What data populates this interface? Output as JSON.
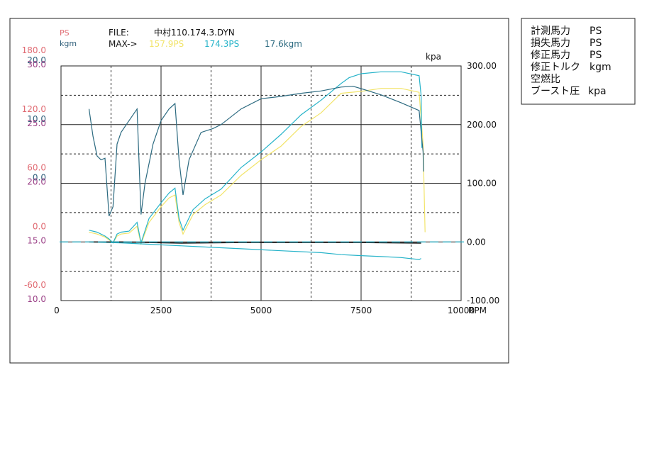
{
  "colors": {
    "ps": "#e06a72",
    "kgm": "#2f5f7a",
    "kpa": "#9a3f86",
    "measured": "#f2e46a",
    "corrected": "#26b3c9",
    "torque": "#2c6a80",
    "loss": "#26b3c9",
    "boost": "#222222",
    "text": "#111111"
  },
  "header": {
    "unit_ps": "PS",
    "unit_kgm": "kgm",
    "file_label": "FILE:",
    "file_name": "中村110.174.3.DYN",
    "max_label": "MAX->",
    "max_measured": "157.9PS",
    "max_corrected": "174.3PS",
    "max_torque": "17.6kgm"
  },
  "legend": {
    "items": [
      {
        "name": "計測馬力",
        "unit": "PS"
      },
      {
        "name": "損失馬力",
        "unit": "PS"
      },
      {
        "name": "修正馬力",
        "unit": "PS"
      },
      {
        "name": "修正トルク",
        "unit": "kgm"
      },
      {
        "name": "空燃比",
        "unit": ""
      },
      {
        "name": "ブースト圧",
        "unit": "kpa"
      }
    ]
  },
  "left_axes": {
    "rows": [
      {
        "ps": "180.0",
        "kgm": "20.0",
        "kpa": "30.0"
      },
      {
        "ps": "120.0",
        "kgm": "10.0",
        "kpa": "25.0"
      },
      {
        "ps": "60.0",
        "kgm": "0.0",
        "kpa": "20.0"
      },
      {
        "ps": "0.0",
        "kgm": "",
        "kpa": "15.0"
      },
      {
        "ps": "-60.0",
        "kgm": "",
        "kpa": "10.0"
      }
    ]
  },
  "chart_data": {
    "type": "line",
    "x_label": "RPM",
    "x_ticks": [
      "0",
      "2500",
      "5000",
      "7500",
      "10000"
    ],
    "xlim": [
      0,
      10000
    ],
    "right_axis_label": "kpa",
    "right_ticks": [
      "300.00",
      "200.00",
      "100.00",
      "0.00",
      "-100.00"
    ],
    "right_ylim": [
      -100,
      300
    ],
    "ps_ylim": [
      -60,
      180
    ],
    "kgm_ylim": [
      -10,
      20
    ],
    "grid": true,
    "series": [
      {
        "name": "計測馬力",
        "axis": "ps",
        "points": [
          [
            700,
            10
          ],
          [
            900,
            8
          ],
          [
            1100,
            5
          ],
          [
            1200,
            2
          ],
          [
            1300,
            -1
          ],
          [
            1400,
            6
          ],
          [
            1500,
            8
          ],
          [
            1700,
            9
          ],
          [
            1900,
            16
          ],
          [
            2000,
            -2
          ],
          [
            2200,
            20
          ],
          [
            2500,
            36
          ],
          [
            2700,
            45
          ],
          [
            2850,
            48
          ],
          [
            2950,
            20
          ],
          [
            3050,
            8
          ],
          [
            3300,
            28
          ],
          [
            3600,
            38
          ],
          [
            4000,
            48
          ],
          [
            4500,
            68
          ],
          [
            5000,
            84
          ],
          [
            5500,
            98
          ],
          [
            6000,
            118
          ],
          [
            6500,
            132
          ],
          [
            7000,
            152
          ],
          [
            7500,
            154
          ],
          [
            8000,
            157
          ],
          [
            8500,
            157
          ],
          [
            8950,
            153
          ],
          [
            9050,
            100
          ],
          [
            9100,
            10
          ]
        ]
      },
      {
        "name": "修正馬力",
        "axis": "ps",
        "points": [
          [
            700,
            12
          ],
          [
            900,
            10
          ],
          [
            1100,
            6
          ],
          [
            1200,
            3
          ],
          [
            1300,
            -1
          ],
          [
            1400,
            8
          ],
          [
            1500,
            10
          ],
          [
            1700,
            11
          ],
          [
            1900,
            20
          ],
          [
            2000,
            -1
          ],
          [
            2200,
            24
          ],
          [
            2500,
            40
          ],
          [
            2700,
            50
          ],
          [
            2850,
            55
          ],
          [
            2950,
            24
          ],
          [
            3050,
            12
          ],
          [
            3300,
            33
          ],
          [
            3600,
            44
          ],
          [
            4000,
            54
          ],
          [
            4500,
            76
          ],
          [
            5000,
            92
          ],
          [
            5500,
            110
          ],
          [
            6000,
            130
          ],
          [
            6500,
            145
          ],
          [
            7000,
            162
          ],
          [
            7200,
            168
          ],
          [
            7500,
            172
          ],
          [
            8000,
            174
          ],
          [
            8500,
            174
          ],
          [
            8950,
            170
          ],
          [
            9000,
            150
          ],
          [
            9020,
            96
          ]
        ]
      },
      {
        "name": "修正トルク",
        "axis": "kgm",
        "points": [
          [
            700,
            14.5
          ],
          [
            800,
            11
          ],
          [
            900,
            8.5
          ],
          [
            1000,
            8
          ],
          [
            1100,
            8.2
          ],
          [
            1200,
            0.8
          ],
          [
            1300,
            2
          ],
          [
            1400,
            10
          ],
          [
            1500,
            11.5
          ],
          [
            1700,
            13
          ],
          [
            1900,
            14.5
          ],
          [
            2000,
            1
          ],
          [
            2100,
            5
          ],
          [
            2300,
            10
          ],
          [
            2500,
            13
          ],
          [
            2700,
            14.5
          ],
          [
            2850,
            15.2
          ],
          [
            2950,
            8
          ],
          [
            3050,
            3.5
          ],
          [
            3200,
            8
          ],
          [
            3500,
            11.5
          ],
          [
            3800,
            12
          ],
          [
            4000,
            12.5
          ],
          [
            4500,
            14.5
          ],
          [
            5000,
            15.8
          ],
          [
            5500,
            16.1
          ],
          [
            6000,
            16.5
          ],
          [
            6500,
            16.8
          ],
          [
            7000,
            17.3
          ],
          [
            7300,
            17.4
          ],
          [
            7500,
            17.1
          ],
          [
            8000,
            16.3
          ],
          [
            8500,
            15.3
          ],
          [
            8950,
            14.3
          ],
          [
            9050,
            9
          ],
          [
            9060,
            6.5
          ]
        ]
      },
      {
        "name": "損失馬力",
        "axis": "ps",
        "points": [
          [
            700,
            0
          ],
          [
            1500,
            -1
          ],
          [
            2500,
            -3
          ],
          [
            3500,
            -5
          ],
          [
            4500,
            -7
          ],
          [
            5500,
            -9
          ],
          [
            6500,
            -11
          ],
          [
            7000,
            -13
          ],
          [
            7500,
            -14
          ],
          [
            8000,
            -15
          ],
          [
            8500,
            -16
          ],
          [
            8950,
            -18
          ],
          [
            9000,
            -17
          ]
        ]
      },
      {
        "name": "ブースト圧",
        "axis": "kpa",
        "points": [
          [
            700,
            0
          ],
          [
            1500,
            0
          ],
          [
            3000,
            -2
          ],
          [
            4500,
            -1
          ],
          [
            6000,
            -1
          ],
          [
            7500,
            -1
          ],
          [
            9000,
            -2
          ]
        ]
      },
      {
        "name": "空燃比",
        "axis": "ps",
        "points": [
          [
            0,
            0
          ],
          [
            10000,
            0
          ]
        ]
      }
    ]
  }
}
